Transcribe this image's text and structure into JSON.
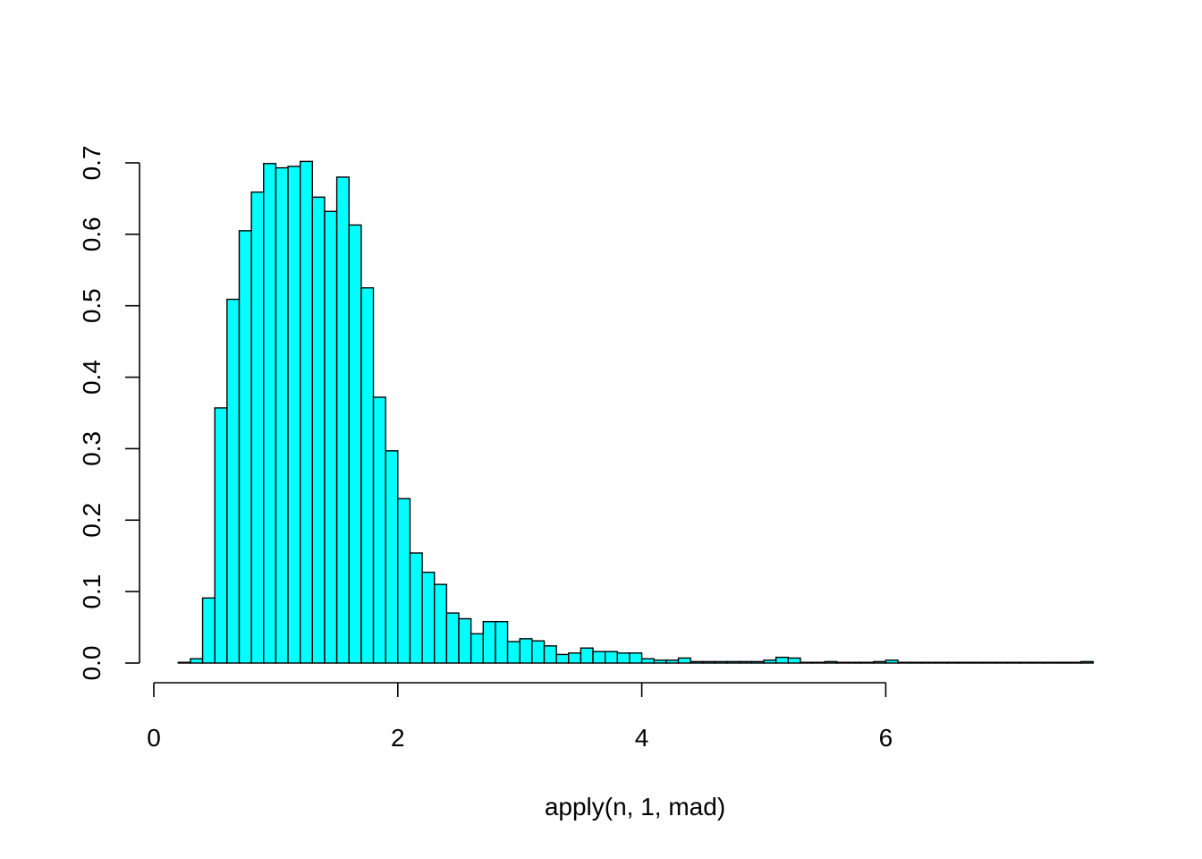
{
  "chart_data": {
    "type": "bar",
    "title": "",
    "xlabel": "apply(n, 1, mad)",
    "ylabel": "",
    "bar_color": "#00FFFF",
    "bar_border_color": "#000000",
    "xlim": [
      0,
      7.7
    ],
    "ylim": [
      0,
      0.7
    ],
    "x_ticks": [
      0,
      2,
      4,
      6
    ],
    "x_tick_labels": [
      "0",
      "2",
      "4",
      "6"
    ],
    "y_ticks": [
      0,
      0.1,
      0.2,
      0.3,
      0.4,
      0.5,
      0.6,
      0.7
    ],
    "y_tick_labels": [
      "0.0",
      "0.1",
      "0.2",
      "0.3",
      "0.4",
      "0.5",
      "0.6",
      "0.7"
    ],
    "bin_width": 0.1,
    "bin_left_edges": [
      0.2,
      0.3,
      0.4,
      0.5,
      0.6,
      0.7,
      0.8,
      0.9,
      1.0,
      1.1,
      1.2,
      1.3,
      1.4,
      1.5,
      1.6,
      1.7,
      1.8,
      1.9,
      2.0,
      2.1,
      2.2,
      2.3,
      2.4,
      2.5,
      2.6,
      2.7,
      2.8,
      2.9,
      3.0,
      3.1,
      3.2,
      3.3,
      3.4,
      3.5,
      3.6,
      3.7,
      3.8,
      3.9,
      4.0,
      4.1,
      4.2,
      4.3,
      4.4,
      4.5,
      4.6,
      4.7,
      4.8,
      4.9,
      5.0,
      5.1,
      5.2,
      5.3,
      5.4,
      5.5,
      5.6,
      5.7,
      5.8,
      5.9,
      6.0,
      6.1,
      6.2,
      6.3,
      6.4,
      6.5,
      6.6,
      6.7,
      6.8,
      6.9,
      7.0,
      7.1,
      7.2,
      7.3,
      7.4,
      7.5,
      7.6
    ],
    "values": [
      0.001,
      0.006,
      0.091,
      0.357,
      0.509,
      0.605,
      0.659,
      0.699,
      0.693,
      0.695,
      0.702,
      0.652,
      0.632,
      0.68,
      0.613,
      0.525,
      0.372,
      0.297,
      0.23,
      0.154,
      0.127,
      0.11,
      0.07,
      0.062,
      0.041,
      0.058,
      0.058,
      0.03,
      0.034,
      0.031,
      0.024,
      0.012,
      0.014,
      0.021,
      0.016,
      0.016,
      0.014,
      0.014,
      0.006,
      0.004,
      0.004,
      0.007,
      0.002,
      0.002,
      0.002,
      0.002,
      0.002,
      0.002,
      0.004,
      0.008,
      0.007,
      0.001,
      0.001,
      0.002,
      0.001,
      0.001,
      0.001,
      0.002,
      0.004,
      0.001,
      0.001,
      0.001,
      0.001,
      0.001,
      0.001,
      0.001,
      0.001,
      0.001,
      0.001,
      0.001,
      0.001,
      0.001,
      0.001,
      0.001,
      0.002
    ]
  }
}
